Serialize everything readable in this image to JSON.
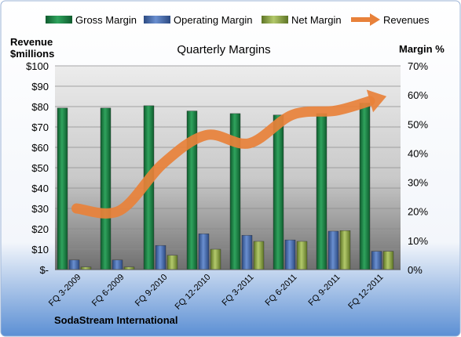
{
  "chart_data": {
    "type": "bar",
    "title": "Quarterly Margins",
    "subtitle_company": "SodaStream International",
    "left_axis_label": [
      "Revenue",
      "$millions"
    ],
    "right_axis_label": "Margin %",
    "categories": [
      "FQ 3-2009",
      "FQ 6-2009",
      "FQ 9-2010",
      "FQ 12-2010",
      "FQ 3-2011",
      "FQ 6-2011",
      "FQ 9-2011",
      "FQ 12-2011"
    ],
    "left_ticks": [
      "$-",
      "$10",
      "$20",
      "$30",
      "$40",
      "$50",
      "$60",
      "$70",
      "$80",
      "$90",
      "$100"
    ],
    "right_ticks": [
      "0%",
      "10%",
      "20%",
      "30%",
      "40%",
      "50%",
      "60%",
      "70%"
    ],
    "left_ylim": [
      0,
      100
    ],
    "right_ylim": [
      0,
      70
    ],
    "grid": true,
    "legend_position": "top",
    "series": [
      {
        "name": "Gross Margin",
        "axis": "right",
        "kind": "bar",
        "color": "#1f8a4c",
        "values": [
          55.5,
          55.5,
          56.3,
          54.5,
          53.6,
          53.1,
          53.6,
          57.2
        ]
      },
      {
        "name": "Operating Margin",
        "axis": "right",
        "kind": "bar",
        "color": "#4a6fb0",
        "values": [
          3.3,
          3.3,
          8.3,
          12.3,
          11.8,
          10.2,
          13.2,
          6.3
        ]
      },
      {
        "name": "Net Margin",
        "axis": "right",
        "kind": "bar",
        "color": "#8fa84a",
        "values": [
          0.9,
          0.9,
          4.9,
          7.0,
          9.7,
          9.7,
          13.4,
          6.3
        ]
      },
      {
        "name": "Revenues",
        "axis": "left",
        "kind": "line",
        "color": "#e8813a",
        "values": [
          30,
          29,
          52,
          66,
          62,
          76,
          78,
          84
        ]
      }
    ]
  }
}
